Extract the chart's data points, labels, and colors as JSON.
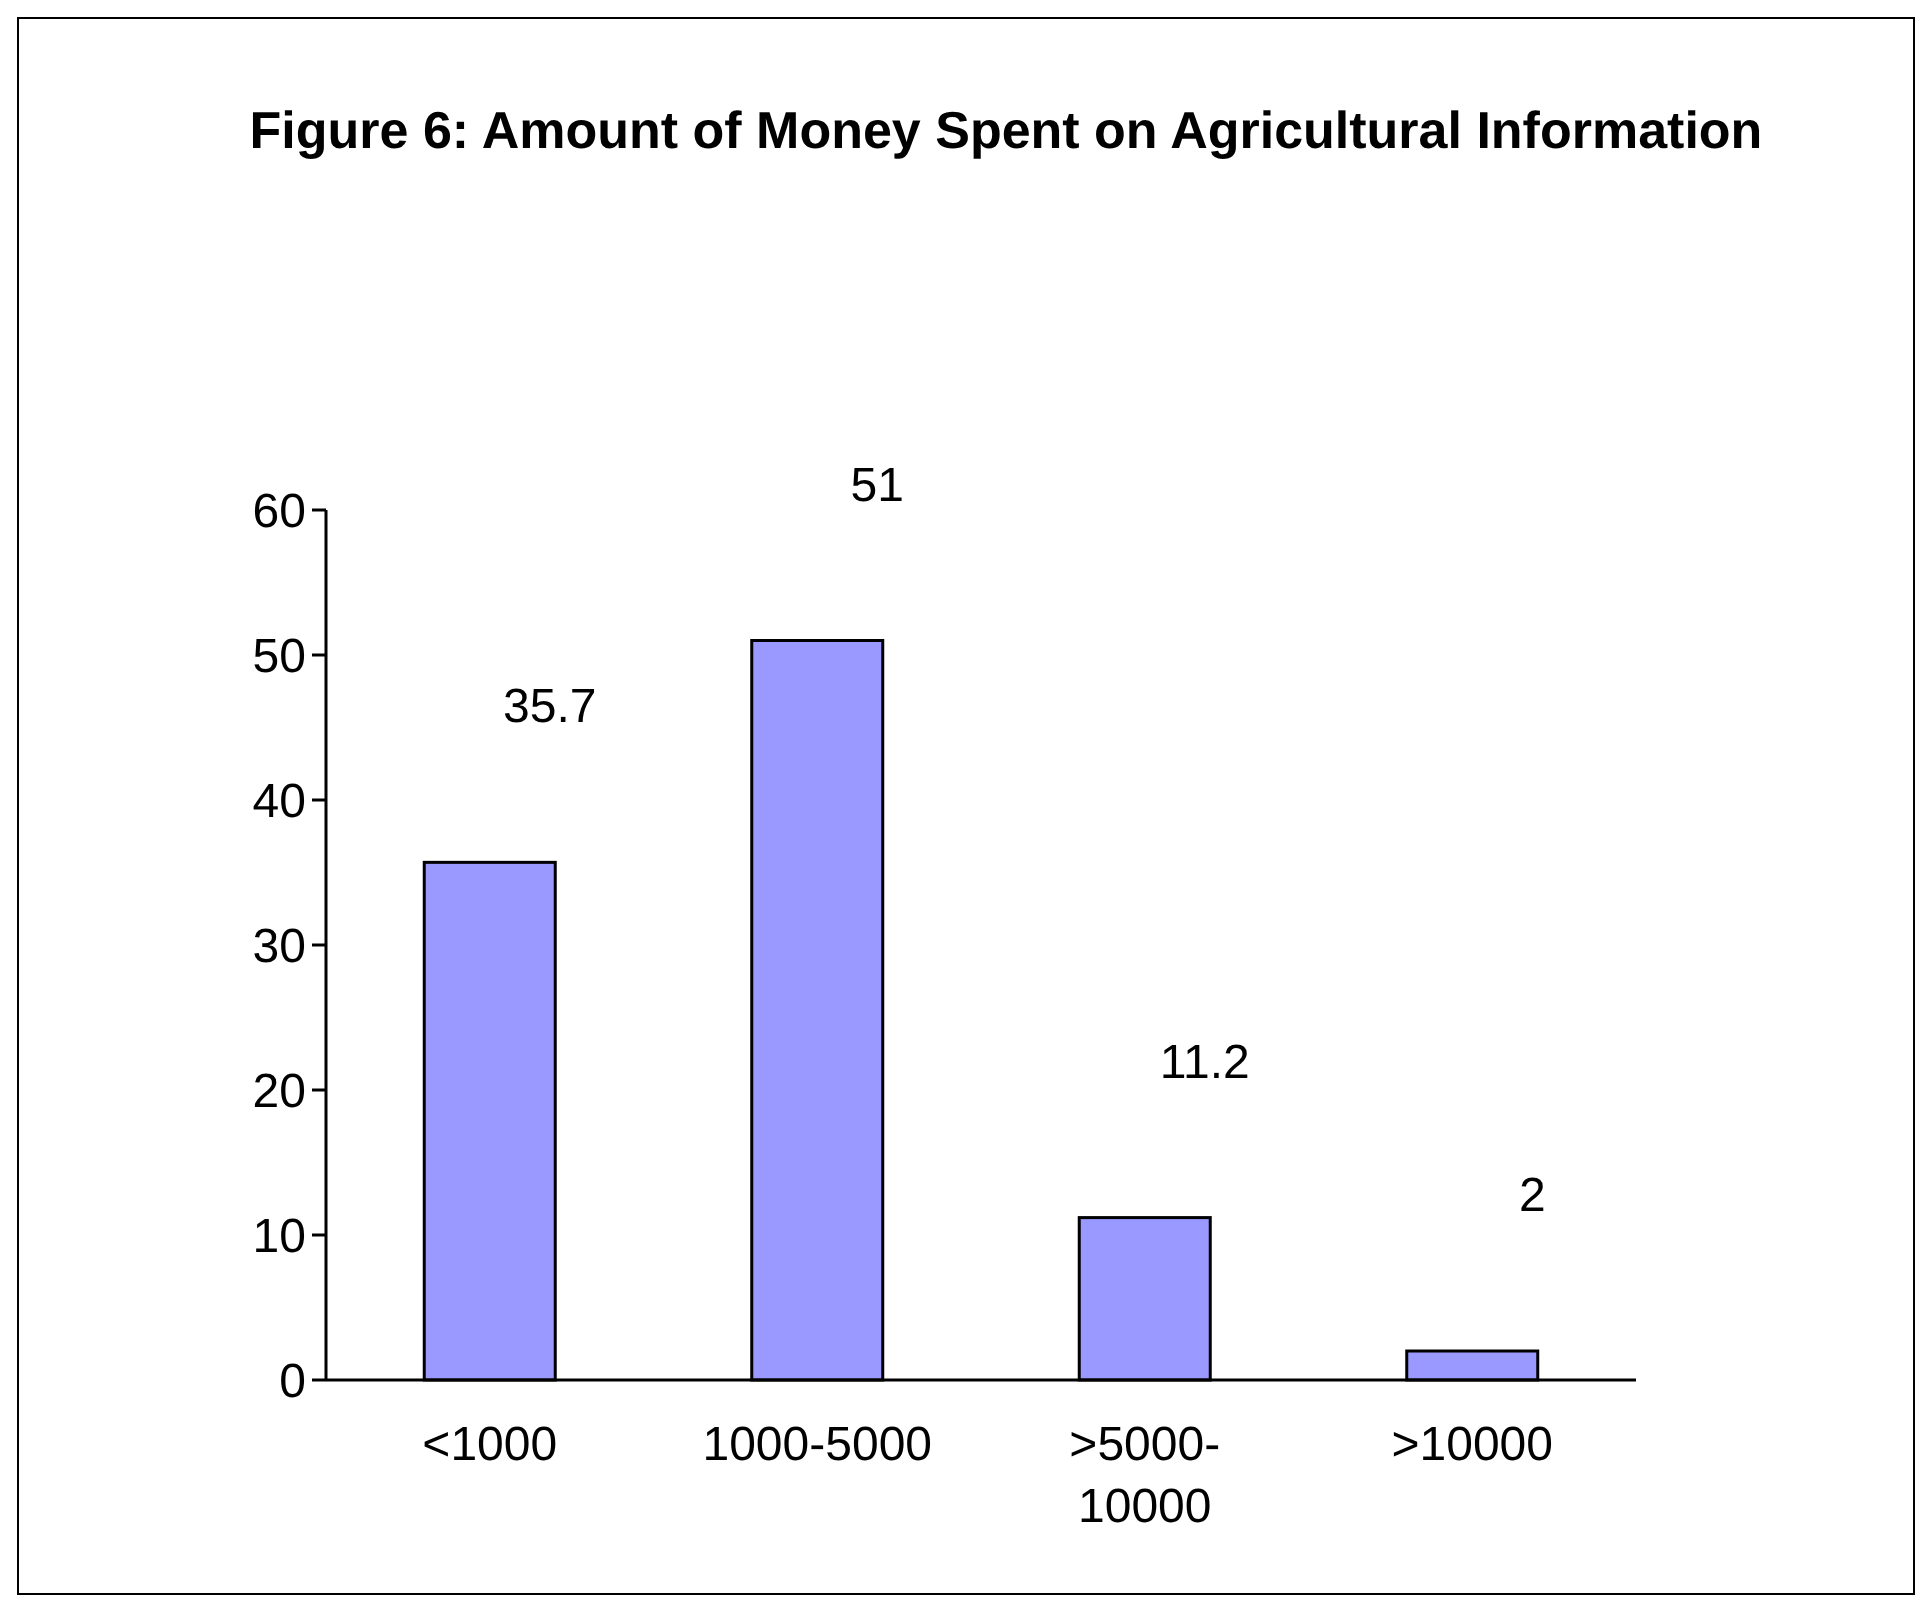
{
  "chart_data": {
    "type": "bar",
    "title": "Figure 6: Amount of Money Spent on Agricultural Information",
    "categories": [
      "<1000",
      "1000-5000",
      ">5000-10000",
      ">10000"
    ],
    "values": [
      35.7,
      51,
      11.2,
      2
    ],
    "color": "#9999ff",
    "ylim": [
      0,
      60
    ],
    "yticks": [
      0,
      10,
      20,
      30,
      40,
      50,
      60
    ],
    "grid": false,
    "data_labels": true
  }
}
